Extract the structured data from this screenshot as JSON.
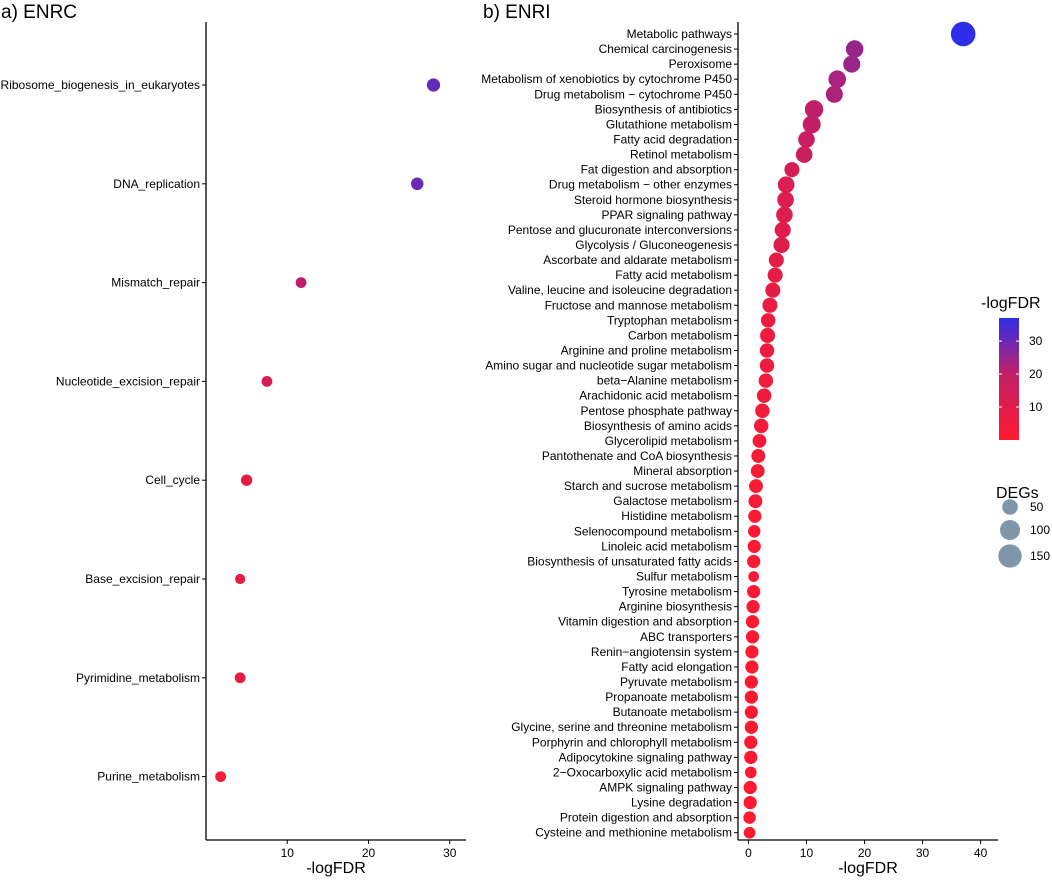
{
  "chart_data": [
    {
      "type": "scatter",
      "panel_label": "a) ENRC",
      "xlabel": "-logFDR",
      "ylabel": "",
      "xlim": [
        0,
        32
      ],
      "xticks": [
        10,
        20,
        30
      ],
      "grid": false,
      "categories": [
        "Ribosome_biogenesis_in_eukaryotes",
        "DNA_replication",
        "Mismatch_repair",
        "Nucleotide_excision_repair",
        "Cell_cycle",
        "Base_excision_repair",
        "Pyrimidine_metabolism",
        "Purine_metabolism"
      ],
      "x": [
        28.0,
        26.0,
        11.7,
        7.5,
        5.0,
        4.2,
        4.2,
        1.8
      ],
      "deg": [
        30,
        25,
        15,
        15,
        18,
        12,
        15,
        15
      ],
      "log_fdr": [
        28.0,
        26.0,
        11.7,
        7.5,
        5.0,
        4.2,
        4.2,
        1.8
      ]
    },
    {
      "type": "scatter",
      "panel_label": "b) ENRI",
      "xlabel": "-logFDR",
      "ylabel": "",
      "xlim": [
        -1.8,
        43
      ],
      "xticks": [
        0,
        10,
        20,
        30,
        40
      ],
      "grid": false,
      "categories": [
        "Metabolic pathways",
        "Chemical carcinogenesis",
        "Peroxisome",
        "Metabolism of xenobiotics by cytochrome P450",
        "Drug metabolism − cytochrome P450",
        "Biosynthesis of antibiotics",
        "Glutathione metabolism",
        "Fatty acid degradation",
        "Retinol metabolism",
        "Fat digestion and absorption",
        "Drug metabolism − other enzymes",
        "Steroid hormone biosynthesis",
        "PPAR signaling pathway",
        "Pentose and glucuronate interconversions",
        "Glycolysis / Gluconeogenesis",
        "Ascorbate and aldarate metabolism",
        "Fatty acid metabolism",
        "Valine, leucine and isoleucine degradation",
        "Fructose and mannose metabolism",
        "Tryptophan metabolism",
        "Carbon metabolism",
        "Arginine and proline metabolism",
        "Amino sugar and nucleotide sugar metabolism",
        "beta−Alanine metabolism",
        "Arachidonic acid metabolism",
        "Pentose phosphate pathway",
        "Biosynthesis of amino acids",
        "Glycerolipid metabolism",
        "Pantothenate and CoA biosynthesis",
        "Mineral absorption",
        "Starch and sucrose metabolism",
        "Galactose metabolism",
        "Histidine metabolism",
        "Selenocompound metabolism",
        "Linoleic acid metabolism",
        "Biosynthesis of unsaturated fatty acids",
        "Sulfur metabolism",
        "Tyrosine metabolism",
        "Arginine biosynthesis",
        "Vitamin digestion and absorption",
        "ABC transporters",
        "Renin−angiotensin system",
        "Fatty acid elongation",
        "Pyruvate metabolism",
        "Propanoate metabolism",
        "Butanoate metabolism",
        "Glycine, serine and threonine metabolism",
        "Porphyrin and chlorophyll metabolism",
        "Adipocytokine signaling pathway",
        "2−Oxocarboxylic acid metabolism",
        "AMPK signaling pathway",
        "Lysine degradation",
        "Protein digestion and absorption",
        "Cysteine and methionine metabolism"
      ],
      "x": [
        37.0,
        18.3,
        17.8,
        15.3,
        14.8,
        11.3,
        10.9,
        10.0,
        9.6,
        7.5,
        6.5,
        6.4,
        6.2,
        5.9,
        5.7,
        4.8,
        4.6,
        4.2,
        3.7,
        3.4,
        3.3,
        3.2,
        3.2,
        3.0,
        2.7,
        2.4,
        2.2,
        1.9,
        1.7,
        1.6,
        1.3,
        1.2,
        1.1,
        1.0,
        1.0,
        0.9,
        0.9,
        0.9,
        0.8,
        0.7,
        0.7,
        0.6,
        0.6,
        0.5,
        0.5,
        0.5,
        0.5,
        0.4,
        0.4,
        0.4,
        0.3,
        0.3,
        0.2,
        0.2
      ],
      "deg": [
        170,
        70,
        65,
        70,
        65,
        80,
        75,
        60,
        60,
        45,
        60,
        60,
        60,
        55,
        55,
        45,
        45,
        45,
        45,
        40,
        45,
        40,
        40,
        40,
        40,
        40,
        40,
        35,
        35,
        35,
        35,
        35,
        30,
        25,
        30,
        30,
        15,
        30,
        30,
        30,
        30,
        30,
        30,
        30,
        30,
        30,
        30,
        30,
        30,
        20,
        30,
        30,
        25,
        20
      ],
      "log_fdr": [
        37.0,
        18.3,
        17.8,
        15.3,
        14.8,
        11.3,
        10.9,
        10.0,
        9.6,
        7.5,
        6.5,
        6.4,
        6.2,
        5.9,
        5.7,
        4.8,
        4.6,
        4.2,
        3.7,
        3.4,
        3.3,
        3.2,
        3.2,
        3.0,
        2.7,
        2.4,
        2.2,
        1.9,
        1.7,
        1.6,
        1.3,
        1.2,
        1.1,
        1.0,
        1.0,
        0.9,
        0.9,
        0.9,
        0.8,
        0.7,
        0.7,
        0.6,
        0.6,
        0.5,
        0.5,
        0.5,
        0.5,
        0.4,
        0.4,
        0.4,
        0.3,
        0.3,
        0.2,
        0.2
      ]
    }
  ],
  "legend": {
    "color_title": "-logFDR",
    "color_ticks": [
      "30",
      "20",
      "10"
    ],
    "color_tick_values": [
      30,
      20,
      10
    ],
    "color_range": [
      0,
      37
    ],
    "color_low": "#ff1a2e",
    "color_high": "#2e2eea",
    "size_title": "DEGs",
    "size_labels": [
      "50",
      "100",
      "150"
    ],
    "size_values": [
      50,
      100,
      150
    ],
    "placement": "right"
  },
  "colors": {
    "marker_size_legend": "#7f96a8",
    "axis": "#000000"
  }
}
